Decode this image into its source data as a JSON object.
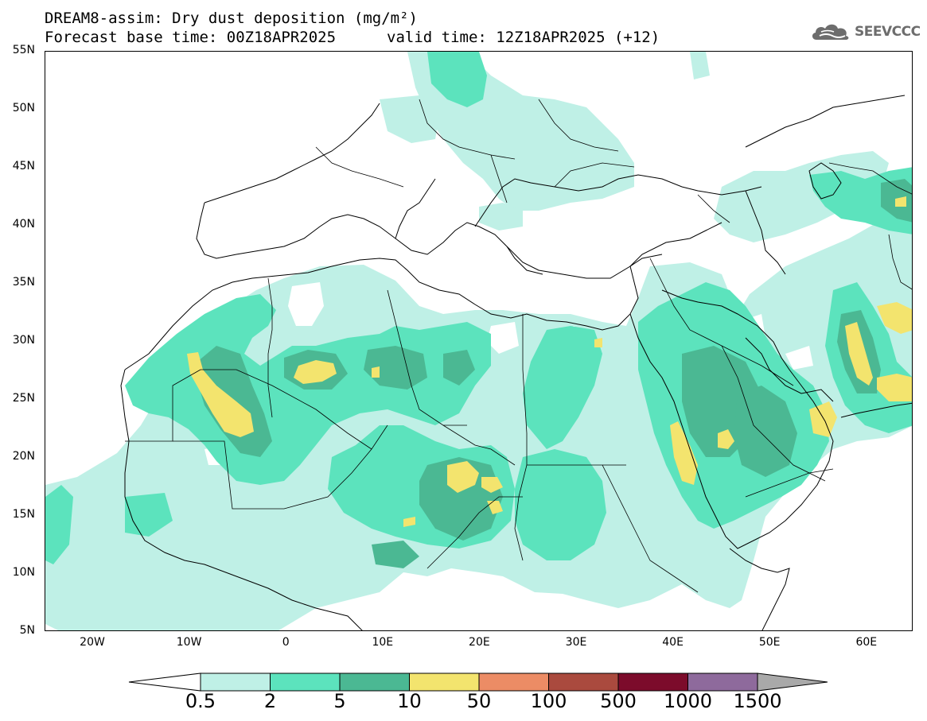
{
  "title": {
    "line1": "DREAM8-assim: Dry dust deposition (mg/m²)",
    "line2": "Forecast base time: 00Z18APR2025",
    "valid": "valid time: 12Z18APR2025 (+12)"
  },
  "logo": {
    "text": "SEEVCCC",
    "icon": "cloud-icon"
  },
  "axes": {
    "lat_labels": [
      "55N",
      "50N",
      "45N",
      "40N",
      "35N",
      "30N",
      "25N",
      "20N",
      "15N",
      "10N",
      "5N"
    ],
    "lon_labels": [
      "20W",
      "10W",
      "0",
      "10E",
      "20E",
      "30E",
      "40E",
      "50E",
      "60E"
    ]
  },
  "colorbar": {
    "labels": [
      "0.5",
      "2",
      "5",
      "10",
      "50",
      "100",
      "500",
      "1000",
      "1500"
    ],
    "colors": [
      "#bff0e6",
      "#5ce3bd",
      "#4bb893",
      "#f3e46e",
      "#ec8c65",
      "#aa4a3e",
      "#7c0b2b",
      "#8e6a9c"
    ],
    "end_color": "#a9a9a9"
  },
  "colors": {
    "level1": "#bff0e6",
    "level2": "#5ce3bd",
    "level3": "#4bb893",
    "level4": "#f3e46e",
    "coast": "#000000"
  }
}
